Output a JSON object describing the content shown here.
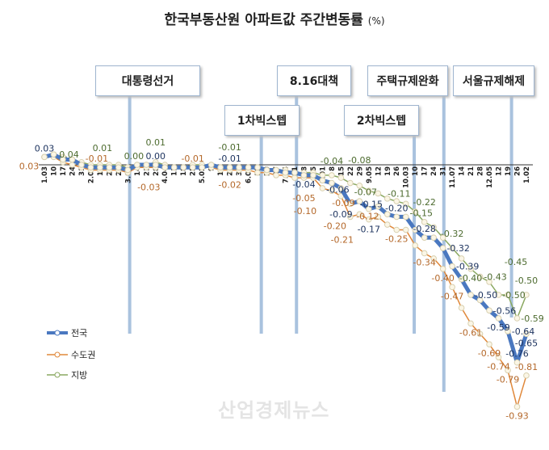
{
  "chart_data": {
    "type": "line",
    "title": "한국부동산원 아파트값 주간변동률",
    "unit": "(%)",
    "categories": [
      "1.03",
      "10",
      "17",
      "24",
      "31",
      "2.07",
      "14",
      "21",
      "28",
      "3.07",
      "14",
      "21",
      "28",
      "4.04",
      "11",
      "18",
      "25",
      "5.02",
      "9",
      "16",
      "23",
      "30",
      "6.06",
      "13",
      "20",
      "27",
      "7.04",
      "11",
      "18",
      "25",
      "8.01",
      "8",
      "15",
      "22",
      "29",
      "9.05",
      "12",
      "19",
      "26",
      "10.03",
      "10",
      "17",
      "24",
      "31",
      "11.07",
      "14",
      "21",
      "28",
      "12.05",
      "12",
      "19",
      "26",
      "1.02"
    ],
    "series": [
      {
        "name": "전국",
        "color": "#4a78c0",
        "values": [
          0.03,
          0.04,
          0.02,
          0.02,
          0.0,
          -0.01,
          -0.01,
          -0.01,
          -0.01,
          -0.02,
          0.0,
          0.0,
          0.0,
          -0.01,
          -0.01,
          -0.01,
          -0.01,
          -0.01,
          0.0,
          -0.01,
          -0.01,
          -0.01,
          -0.01,
          -0.01,
          -0.02,
          -0.02,
          -0.03,
          -0.03,
          -0.04,
          -0.04,
          -0.06,
          -0.07,
          -0.09,
          -0.15,
          -0.14,
          -0.17,
          -0.16,
          -0.19,
          -0.2,
          -0.2,
          -0.25,
          -0.28,
          -0.28,
          -0.32,
          -0.39,
          -0.44,
          -0.5,
          -0.52,
          -0.56,
          -0.59,
          -0.64,
          -0.76,
          -0.65
        ],
        "labeled_points": [
          0,
          12,
          20,
          28,
          30,
          32,
          33,
          35,
          38,
          41,
          43,
          44,
          46,
          48,
          49,
          50,
          51,
          52
        ]
      },
      {
        "name": "수도권",
        "color": "#e0883a",
        "values": [
          0.03,
          0.03,
          0.01,
          0.0,
          -0.01,
          -0.02,
          -0.02,
          -0.02,
          -0.02,
          -0.03,
          -0.01,
          -0.01,
          -0.01,
          -0.01,
          -0.01,
          -0.01,
          -0.01,
          -0.01,
          -0.01,
          -0.02,
          -0.02,
          -0.02,
          -0.02,
          -0.03,
          -0.03,
          -0.04,
          -0.04,
          -0.05,
          -0.05,
          -0.05,
          -0.09,
          -0.1,
          -0.12,
          -0.2,
          -0.19,
          -0.21,
          -0.2,
          -0.23,
          -0.25,
          -0.25,
          -0.31,
          -0.34,
          -0.36,
          -0.4,
          -0.47,
          -0.55,
          -0.61,
          -0.65,
          -0.69,
          -0.74,
          -0.79,
          -0.93,
          -0.81
        ],
        "labeled_points": [
          0,
          4,
          9,
          16,
          20,
          28,
          30,
          31,
          32,
          33,
          35,
          38,
          41,
          43,
          44,
          46,
          48,
          49,
          50,
          51,
          52
        ]
      },
      {
        "name": "지방",
        "color": "#8aa860",
        "values": [
          0.03,
          0.04,
          0.03,
          0.02,
          0.01,
          0.0,
          0.0,
          0.0,
          0.0,
          -0.01,
          0.0,
          0.0,
          0.01,
          0.0,
          -0.01,
          -0.01,
          0.0,
          0.0,
          0.0,
          -0.01,
          -0.01,
          -0.01,
          -0.01,
          -0.01,
          -0.02,
          -0.02,
          -0.02,
          -0.03,
          -0.03,
          -0.03,
          -0.04,
          -0.04,
          -0.05,
          -0.07,
          -0.08,
          -0.1,
          -0.11,
          -0.13,
          -0.14,
          -0.15,
          -0.18,
          -0.22,
          -0.24,
          -0.28,
          -0.32,
          -0.36,
          -0.4,
          -0.43,
          -0.45,
          -0.5,
          -0.5,
          -0.59,
          -0.5
        ],
        "labeled_points": [
          1,
          4,
          8,
          12,
          20,
          31,
          33,
          34,
          36,
          39,
          41,
          44,
          46,
          47,
          48,
          49,
          51,
          52
        ]
      }
    ],
    "annotations": [
      {
        "label": "대통령선거",
        "at": "3.07"
      },
      {
        "label": "1차빅스텝",
        "at": "13"
      },
      {
        "label": "8.16대책",
        "at": "18"
      },
      {
        "label": "2차빅스텝",
        "at": "10.03"
      },
      {
        "label": "주택규제완화",
        "at": "31"
      },
      {
        "label": "서울규제해제",
        "at": "19"
      }
    ],
    "legend_position": "bottom-left",
    "grid": false
  },
  "watermark": "산업경제뉴스"
}
